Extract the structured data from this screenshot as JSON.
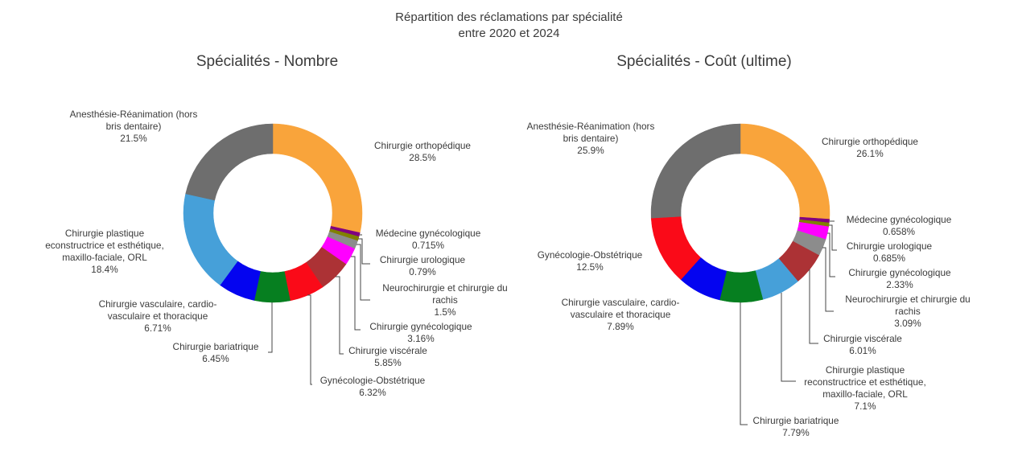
{
  "title": {
    "line1": "Répartition des réclamations par spécialité",
    "line2": "entre 2020 et 2024"
  },
  "chart_data": [
    {
      "type": "pie",
      "subtype": "donut",
      "title": "Spécialités - Nombre",
      "unit": "%",
      "legend": "none",
      "slices": [
        {
          "label": "Chirurgie orthopédique",
          "value": 28.5,
          "pct_label": "28.5%",
          "color": "#F9A43B"
        },
        {
          "label": "Médecine gynécologique",
          "value": 0.715,
          "pct_label": "0.715%",
          "color": "#800080"
        },
        {
          "label": "Chirurgie urologique",
          "value": 0.79,
          "pct_label": "0.79%",
          "color": "#808000"
        },
        {
          "label": "Neurochirurgie et chirurgie du rachis",
          "value": 1.5,
          "pct_label": "1.5%",
          "color": "#8C8C8C"
        },
        {
          "label": "Chirurgie gynécologique",
          "value": 3.16,
          "pct_label": "3.16%",
          "color": "#FF00FF"
        },
        {
          "label": "Chirurgie viscérale",
          "value": 5.85,
          "pct_label": "5.85%",
          "color": "#AC3235"
        },
        {
          "label": "Gynécologie-Obstétrique",
          "value": 6.32,
          "pct_label": "6.32%",
          "color": "#FA0A18"
        },
        {
          "label": "Chirurgie bariatrique",
          "value": 6.45,
          "pct_label": "6.45%",
          "color": "#067F20"
        },
        {
          "label": "Chirurgie vasculaire, cardio-vasculaire et thoracique",
          "value": 6.71,
          "pct_label": "6.71%",
          "color": "#0404F0"
        },
        {
          "label": "Chirurgie plastique econstructrice et esthétique, maxillo-faciale, ORL",
          "value": 18.4,
          "pct_label": "18.4%",
          "color": "#46A0D9"
        },
        {
          "label": "Anesthésie-Réanimation (hors bris dentaire)",
          "value": 21.5,
          "pct_label": "21.5%",
          "color": "#6E6E6E"
        }
      ]
    },
    {
      "type": "pie",
      "subtype": "donut",
      "title": "Spécialités - Coût (ultime)",
      "unit": "%",
      "legend": "none",
      "slices": [
        {
          "label": "Chirurgie orthopédique",
          "value": 26.1,
          "pct_label": "26.1%",
          "color": "#F9A43B"
        },
        {
          "label": "Médecine gynécologique",
          "value": 0.658,
          "pct_label": "0.658%",
          "color": "#800080"
        },
        {
          "label": "Chirurgie urologique",
          "value": 0.685,
          "pct_label": "0.685%",
          "color": "#808000"
        },
        {
          "label": "Chirurgie gynécologique",
          "value": 2.33,
          "pct_label": "2.33%",
          "color": "#FF00FF"
        },
        {
          "label": "Neurochirurgie et chirurgie du rachis",
          "value": 3.09,
          "pct_label": "3.09%",
          "color": "#8C8C8C"
        },
        {
          "label": "Chirurgie viscérale",
          "value": 6.01,
          "pct_label": "6.01%",
          "color": "#AC3235"
        },
        {
          "label": "Chirurgie plastique reconstructrice et esthétique, maxillo-faciale, ORL",
          "value": 7.1,
          "pct_label": "7.1%",
          "color": "#46A0D9"
        },
        {
          "label": "Chirurgie bariatrique",
          "value": 7.79,
          "pct_label": "7.79%",
          "color": "#067F20"
        },
        {
          "label": "Chirurgie vasculaire, cardio-vasculaire et thoracique",
          "value": 7.89,
          "pct_label": "7.89%",
          "color": "#0404F0"
        },
        {
          "label": "Gynécologie-Obstétrique",
          "value": 12.5,
          "pct_label": "12.5%",
          "color": "#FA0A18"
        },
        {
          "label": "Anesthésie-Réanimation (hors bris dentaire)",
          "value": 25.9,
          "pct_label": "25.9%",
          "color": "#6E6E6E"
        }
      ]
    }
  ]
}
